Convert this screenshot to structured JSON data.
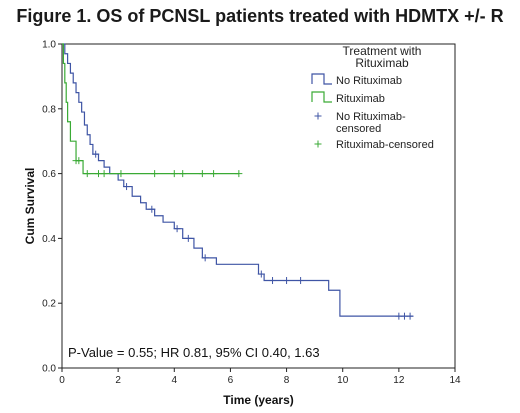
{
  "title": "Figure 1. OS of PCNSL patients treated with HDMTX +/- R",
  "chart_data": {
    "type": "line",
    "step": true,
    "xlabel": "Time (years)",
    "ylabel": "Cum Survival",
    "xlim": [
      0,
      14
    ],
    "ylim": [
      0.0,
      1.0
    ],
    "x_ticks": [
      "0",
      "2",
      "4",
      "6",
      "8",
      "10",
      "12",
      "14"
    ],
    "y_ticks": [
      "0.0",
      "0.2",
      "0.4",
      "0.6",
      "0.8",
      "1.0"
    ],
    "grid": false,
    "legend": {
      "title_lines": [
        "Treatment with",
        "Rituximab"
      ],
      "position": "top-right",
      "entries": [
        {
          "label_lines": [
            "No Rituximab"
          ],
          "kind": "step",
          "color": "#3f55a5"
        },
        {
          "label_lines": [
            "Rituximab"
          ],
          "kind": "step",
          "color": "#3aaa35"
        },
        {
          "label_lines": [
            "No Rituximab-",
            "censored"
          ],
          "kind": "censor",
          "color": "#3f55a5"
        },
        {
          "label_lines": [
            "Rituximab-censored"
          ],
          "kind": "censor",
          "color": "#3aaa35"
        }
      ]
    },
    "annotation": "P-Value = 0.55; HR 0.81, 95% CI 0.40, 1.63",
    "series": [
      {
        "name": "No Rituximab",
        "color": "#3f55a5",
        "steps": [
          [
            0,
            1.0
          ],
          [
            0.1,
            0.97
          ],
          [
            0.2,
            0.94
          ],
          [
            0.3,
            0.91
          ],
          [
            0.4,
            0.88
          ],
          [
            0.5,
            0.85
          ],
          [
            0.6,
            0.82
          ],
          [
            0.7,
            0.79
          ],
          [
            0.8,
            0.75
          ],
          [
            0.9,
            0.72
          ],
          [
            1.0,
            0.69
          ],
          [
            1.1,
            0.66
          ],
          [
            1.3,
            0.64
          ],
          [
            1.5,
            0.62
          ],
          [
            1.7,
            0.6
          ],
          [
            2.0,
            0.58
          ],
          [
            2.2,
            0.56
          ],
          [
            2.5,
            0.53
          ],
          [
            2.8,
            0.51
          ],
          [
            3.0,
            0.49
          ],
          [
            3.3,
            0.47
          ],
          [
            3.6,
            0.45
          ],
          [
            4.0,
            0.43
          ],
          [
            4.3,
            0.4
          ],
          [
            4.7,
            0.37
          ],
          [
            5.0,
            0.34
          ],
          [
            5.5,
            0.32
          ],
          [
            7.0,
            0.29
          ],
          [
            7.2,
            0.27
          ],
          [
            9.5,
            0.24
          ],
          [
            9.9,
            0.16
          ],
          [
            12.5,
            0.16
          ]
        ],
        "censored": [
          [
            1.2,
            0.66
          ],
          [
            2.3,
            0.56
          ],
          [
            3.2,
            0.49
          ],
          [
            4.1,
            0.43
          ],
          [
            4.5,
            0.4
          ],
          [
            5.1,
            0.34
          ],
          [
            7.1,
            0.29
          ],
          [
            7.5,
            0.27
          ],
          [
            8.0,
            0.27
          ],
          [
            8.5,
            0.27
          ],
          [
            12.0,
            0.16
          ],
          [
            12.2,
            0.16
          ],
          [
            12.4,
            0.16
          ]
        ]
      },
      {
        "name": "Rituximab",
        "color": "#3aaa35",
        "steps": [
          [
            0,
            1.0
          ],
          [
            0.05,
            0.94
          ],
          [
            0.1,
            0.88
          ],
          [
            0.15,
            0.82
          ],
          [
            0.2,
            0.76
          ],
          [
            0.3,
            0.7
          ],
          [
            0.5,
            0.64
          ],
          [
            0.75,
            0.6
          ],
          [
            6.3,
            0.6
          ]
        ],
        "censored": [
          [
            0.5,
            0.64
          ],
          [
            0.6,
            0.64
          ],
          [
            0.9,
            0.6
          ],
          [
            1.3,
            0.6
          ],
          [
            1.5,
            0.6
          ],
          [
            2.1,
            0.6
          ],
          [
            3.3,
            0.6
          ],
          [
            4.0,
            0.6
          ],
          [
            4.3,
            0.6
          ],
          [
            5.0,
            0.6
          ],
          [
            5.4,
            0.6
          ],
          [
            6.3,
            0.6
          ]
        ]
      }
    ]
  }
}
